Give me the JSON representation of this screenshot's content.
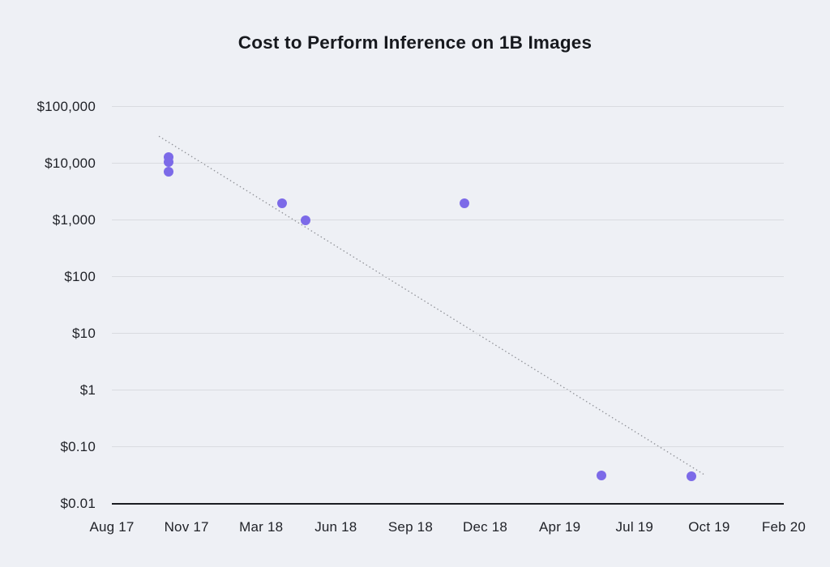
{
  "chart_data": {
    "type": "scatter",
    "title": "Cost to Perform Inference on 1B Images",
    "xlabel": "",
    "ylabel": "",
    "y_axis": {
      "scale": "log",
      "range": [
        0.01,
        100000
      ],
      "ticks": [
        {
          "label": "$100,000",
          "value": 100000
        },
        {
          "label": "$10,000",
          "value": 10000
        },
        {
          "label": "$1,000",
          "value": 1000
        },
        {
          "label": "$100",
          "value": 100
        },
        {
          "label": "$10",
          "value": 10
        },
        {
          "label": "$1",
          "value": 1
        },
        {
          "label": "$0.10",
          "value": 0.1
        },
        {
          "label": "$0.01",
          "value": 0.01
        }
      ]
    },
    "x_axis": {
      "tick_labels": [
        "Aug 17",
        "Nov 17",
        "Mar 18",
        "Jun 18",
        "Sep 18",
        "Dec 18",
        "Apr 19",
        "Jul 19",
        "Oct 19",
        "Feb 20"
      ]
    },
    "grid": "horizontal-only",
    "legend": "none",
    "points": [
      {
        "date": "Oct 17",
        "cost": 13000,
        "x_frac": 0.0844
      },
      {
        "date": "Oct 17",
        "cost": 10500,
        "x_frac": 0.0844
      },
      {
        "date": "Oct 17",
        "cost": 7000,
        "x_frac": 0.0844
      },
      {
        "date": "Apr 18",
        "cost": 2000,
        "x_frac": 0.2533
      },
      {
        "date": "May 18",
        "cost": 1000,
        "x_frac": 0.2883
      },
      {
        "date": "Nov 18",
        "cost": 2000,
        "x_frac": 0.5247
      },
      {
        "date": "Jun 19",
        "cost": 0.032,
        "x_frac": 0.7286
      },
      {
        "date": "Sep 19",
        "cost": 0.031,
        "x_frac": 0.8625
      }
    ],
    "trendline": {
      "style": "dotted",
      "x1_frac": 0.07,
      "y1_value": 30000,
      "x2_frac": 0.881,
      "y2_value": 0.033
    },
    "colors": {
      "background": "#EEF0F5",
      "dot": "#7C6AE8",
      "gridline": "#D9DBE0",
      "axis": "#1B1D22",
      "text": "#1F2127",
      "trendline": "#909298"
    }
  }
}
